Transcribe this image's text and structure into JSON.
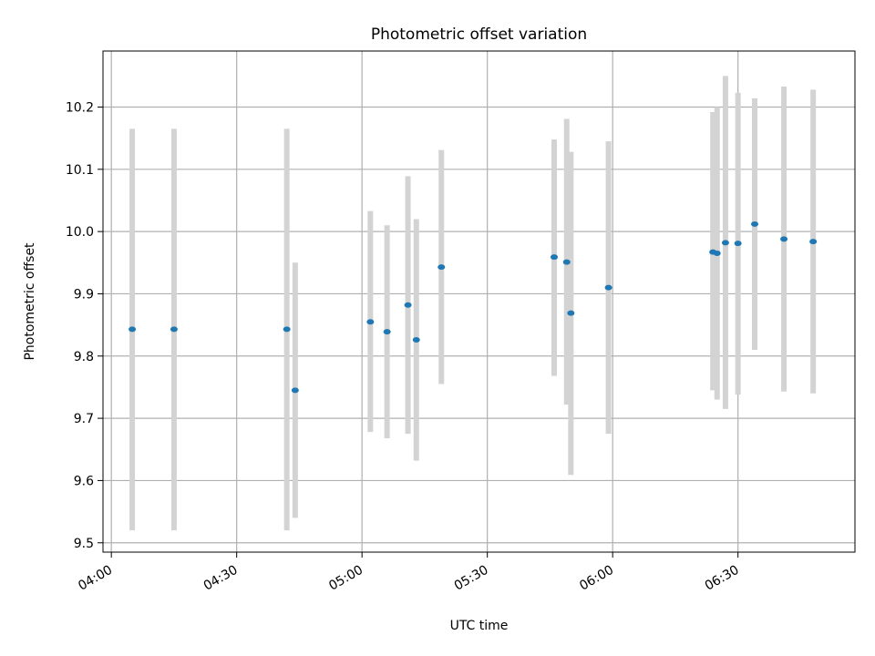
{
  "chart_data": {
    "type": "scatter",
    "title": "Photometric offset variation",
    "xlabel": "UTC time",
    "ylabel": "Photometric offset",
    "x_unit": "HH:MM UTC",
    "xlim": [
      "03:58",
      "06:58"
    ],
    "ylim": [
      9.485,
      10.29
    ],
    "x_ticks": [
      "04:00",
      "04:30",
      "05:00",
      "05:30",
      "06:00",
      "06:30"
    ],
    "y_ticks": [
      9.5,
      9.6,
      9.7,
      9.8,
      9.9,
      10.0,
      10.1,
      10.2
    ],
    "y_tick_labels": [
      "9.5",
      "9.6",
      "9.7",
      "9.8",
      "9.9",
      "10.0",
      "10.1",
      "10.2"
    ],
    "grid": true,
    "legend": "none",
    "colors": {
      "point": "#1f77b4",
      "error_bar": "#d3d3d3",
      "grid": "#b0b0b0",
      "axes": "#000000"
    },
    "points": [
      {
        "x": "04:05",
        "y": 9.843,
        "ymin": 9.52,
        "ymax": 10.165
      },
      {
        "x": "04:15",
        "y": 9.843,
        "ymin": 9.52,
        "ymax": 10.165
      },
      {
        "x": "04:42",
        "y": 9.843,
        "ymin": 9.52,
        "ymax": 10.165
      },
      {
        "x": "04:44",
        "y": 9.745,
        "ymin": 9.54,
        "ymax": 9.95
      },
      {
        "x": "05:02",
        "y": 9.855,
        "ymin": 9.678,
        "ymax": 10.033
      },
      {
        "x": "05:06",
        "y": 9.839,
        "ymin": 9.668,
        "ymax": 10.01
      },
      {
        "x": "05:11",
        "y": 9.882,
        "ymin": 9.675,
        "ymax": 10.089
      },
      {
        "x": "05:13",
        "y": 9.826,
        "ymin": 9.632,
        "ymax": 10.02
      },
      {
        "x": "05:19",
        "y": 9.943,
        "ymin": 9.755,
        "ymax": 10.131
      },
      {
        "x": "05:46",
        "y": 9.959,
        "ymin": 9.768,
        "ymax": 10.148
      },
      {
        "x": "05:49",
        "y": 9.951,
        "ymin": 9.722,
        "ymax": 10.181
      },
      {
        "x": "05:50",
        "y": 9.869,
        "ymin": 9.609,
        "ymax": 10.128
      },
      {
        "x": "05:59",
        "y": 9.91,
        "ymin": 9.675,
        "ymax": 10.145
      },
      {
        "x": "06:24",
        "y": 9.967,
        "ymin": 9.745,
        "ymax": 10.192
      },
      {
        "x": "06:25",
        "y": 9.965,
        "ymin": 9.73,
        "ymax": 10.2
      },
      {
        "x": "06:27",
        "y": 9.982,
        "ymin": 9.715,
        "ymax": 10.25
      },
      {
        "x": "06:30",
        "y": 9.981,
        "ymin": 9.738,
        "ymax": 10.223
      },
      {
        "x": "06:34",
        "y": 10.012,
        "ymin": 9.81,
        "ymax": 10.214
      },
      {
        "x": "06:41",
        "y": 9.988,
        "ymin": 9.743,
        "ymax": 10.233
      },
      {
        "x": "06:48",
        "y": 9.984,
        "ymin": 9.74,
        "ymax": 10.228
      }
    ]
  }
}
